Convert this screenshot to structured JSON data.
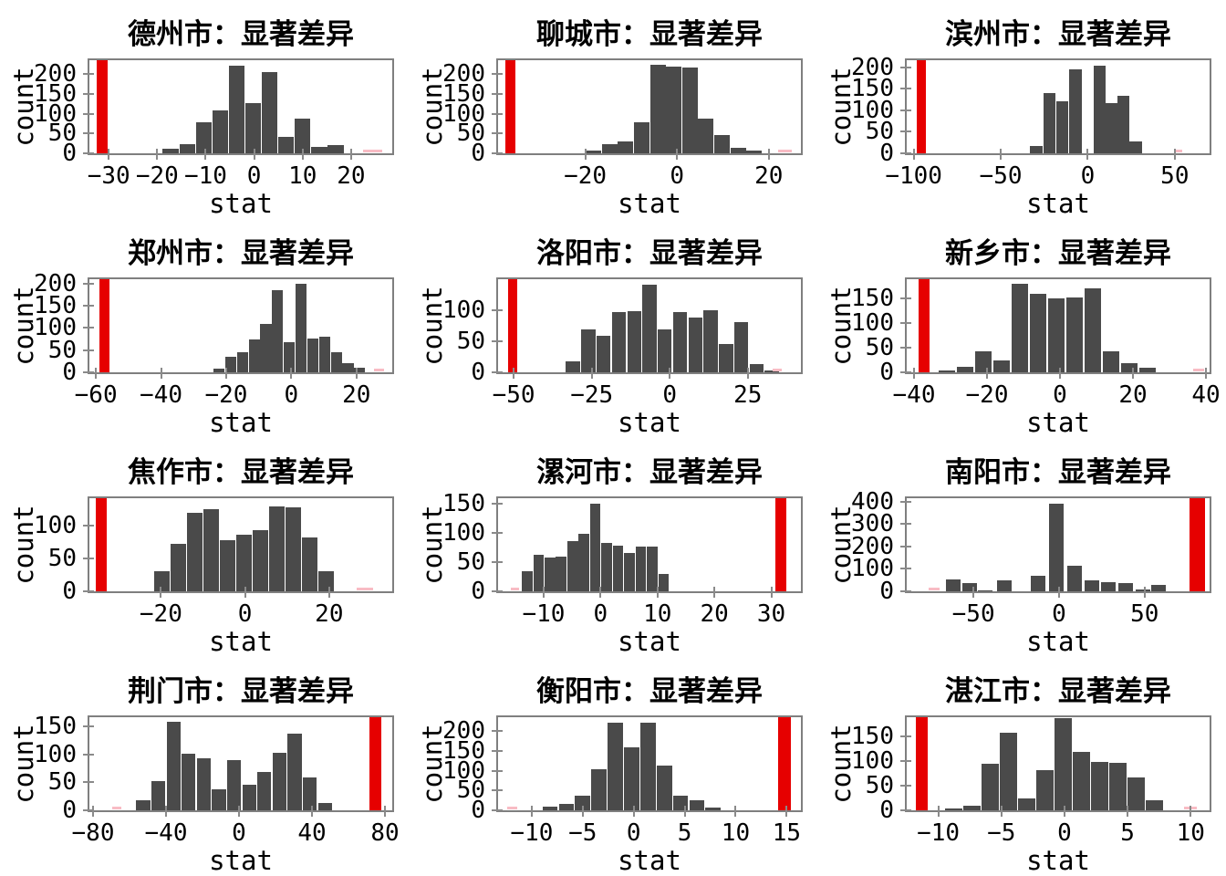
{
  "figure": {
    "rows": 4,
    "cols": 3,
    "xlabel": "stat",
    "ylabel": "count"
  },
  "colors": {
    "histogram_bar": "#4a4a4a",
    "highlight_bar": "#e60000",
    "pink_mark": "#f8bcc4",
    "spine": "#7f7f7f",
    "tick": "#8a8a8a",
    "text": "#000000",
    "background": "#ffffff"
  },
  "chart_data": [
    {
      "type": "bar",
      "title": "德州市：显著差异",
      "xlabel": "stat",
      "ylabel": "count",
      "xlim": [
        -34,
        28.5
      ],
      "ylim": [
        0,
        235
      ],
      "xticks": {
        "values": [
          -30,
          -20,
          -10,
          0,
          10,
          20
        ],
        "labels": [
          "−30",
          "−20",
          "−10",
          "0",
          "10",
          "20"
        ]
      },
      "yticks": {
        "values": [
          0,
          50,
          100,
          150,
          200
        ],
        "labels": [
          "0",
          "50",
          "100",
          "150",
          "200"
        ]
      },
      "bar_width": 3.3,
      "bars": [
        {
          "x": -17.2,
          "count": 12
        },
        {
          "x": -13.8,
          "count": 24
        },
        {
          "x": -10.4,
          "count": 78
        },
        {
          "x": -7.0,
          "count": 108
        },
        {
          "x": -3.6,
          "count": 222
        },
        {
          "x": -0.2,
          "count": 127
        },
        {
          "x": 3.2,
          "count": 205
        },
        {
          "x": 6.6,
          "count": 42
        },
        {
          "x": 10.0,
          "count": 88
        },
        {
          "x": 13.4,
          "count": 16
        },
        {
          "x": 16.8,
          "count": 21
        }
      ],
      "highlight_bar": {
        "x": -31.4,
        "width": 2.2,
        "full_height": true
      },
      "pink_mark": {
        "x": 24.5,
        "width": 4
      }
    },
    {
      "type": "bar",
      "title": "聊城市：显著差异",
      "xlabel": "stat",
      "ylabel": "count",
      "xlim": [
        -39,
        27
      ],
      "ylim": [
        0,
        235
      ],
      "xticks": {
        "values": [
          -20,
          0,
          20
        ],
        "labels": [
          "−20",
          "0",
          "20"
        ]
      },
      "yticks": {
        "values": [
          0,
          50,
          100,
          150,
          200
        ],
        "labels": [
          "0",
          "50",
          "100",
          "150",
          "200"
        ]
      },
      "bar_width": 3.4,
      "bars": [
        {
          "x": -18.2,
          "count": 6
        },
        {
          "x": -14.7,
          "count": 22
        },
        {
          "x": -11.2,
          "count": 30
        },
        {
          "x": -7.7,
          "count": 78
        },
        {
          "x": -4.2,
          "count": 224
        },
        {
          "x": -0.7,
          "count": 219
        },
        {
          "x": 2.8,
          "count": 217
        },
        {
          "x": 6.3,
          "count": 88
        },
        {
          "x": 9.8,
          "count": 45
        },
        {
          "x": 13.3,
          "count": 13
        },
        {
          "x": 16.8,
          "count": 6
        }
      ],
      "highlight_bar": {
        "x": -36.3,
        "width": 2.2,
        "full_height": true
      },
      "pink_mark": {
        "x": 23.5,
        "width": 3
      }
    },
    {
      "type": "bar",
      "title": "滨州市：显著差异",
      "xlabel": "stat",
      "ylabel": "count",
      "xlim": [
        -104,
        70
      ],
      "ylim": [
        0,
        217
      ],
      "xticks": {
        "values": [
          -100,
          -50,
          0,
          50
        ],
        "labels": [
          "−100",
          "−50",
          "0",
          "50"
        ]
      },
      "yticks": {
        "values": [
          0,
          50,
          100,
          150,
          200
        ],
        "labels": [
          "0",
          "50",
          "100",
          "150",
          "200"
        ]
      },
      "bar_width": 7.0,
      "bars": [
        {
          "x": -29.5,
          "count": 18
        },
        {
          "x": -22,
          "count": 140
        },
        {
          "x": -14.5,
          "count": 122
        },
        {
          "x": -7,
          "count": 196
        },
        {
          "x": 7,
          "count": 205
        },
        {
          "x": 13.5,
          "count": 118
        },
        {
          "x": 20.5,
          "count": 135
        },
        {
          "x": 27.5,
          "count": 27
        }
      ],
      "highlight_bar": {
        "x": -95.5,
        "width": 5,
        "full_height": true
      },
      "pink_mark": {
        "x": 52,
        "width": 5
      }
    },
    {
      "type": "bar",
      "title": "郑州市：显著差异",
      "xlabel": "stat",
      "ylabel": "count",
      "xlim": [
        -62,
        31
      ],
      "ylim": [
        0,
        210
      ],
      "xticks": {
        "values": [
          -60,
          -40,
          -20,
          0,
          20
        ],
        "labels": [
          "−60",
          "−40",
          "−20",
          "0",
          "20"
        ]
      },
      "yticks": {
        "values": [
          0,
          50,
          100,
          150,
          200
        ],
        "labels": [
          "0",
          "50",
          "100",
          "150",
          "200"
        ]
      },
      "bar_width": 3.4,
      "bars": [
        {
          "x": -22.2,
          "count": 8
        },
        {
          "x": -18.6,
          "count": 35
        },
        {
          "x": -15.0,
          "count": 45
        },
        {
          "x": -11.4,
          "count": 75
        },
        {
          "x": -7.8,
          "count": 110
        },
        {
          "x": -4.2,
          "count": 185
        },
        {
          "x": -0.6,
          "count": 67
        },
        {
          "x": 3.0,
          "count": 200
        },
        {
          "x": 6.6,
          "count": 77
        },
        {
          "x": 10.2,
          "count": 80
        },
        {
          "x": 13.8,
          "count": 45
        },
        {
          "x": 17.4,
          "count": 20
        },
        {
          "x": 21.0,
          "count": 10
        }
      ],
      "highlight_bar": {
        "x": -57.3,
        "width": 3.2,
        "full_height": true
      },
      "pink_mark": {
        "x": 27,
        "width": 3
      }
    },
    {
      "type": "bar",
      "title": "洛阳市：显著差异",
      "xlabel": "stat",
      "ylabel": "count",
      "xlim": [
        -55,
        42
      ],
      "ylim": [
        0,
        149
      ],
      "xticks": {
        "values": [
          -50,
          -25,
          0,
          25
        ],
        "labels": [
          "−50",
          "−25",
          "0",
          "25"
        ]
      },
      "yticks": {
        "values": [
          0,
          50,
          100
        ],
        "labels": [
          "0",
          "50",
          "100"
        ]
      },
      "bar_width": 4.5,
      "bars": [
        {
          "x": -31,
          "count": 17
        },
        {
          "x": -26.1,
          "count": 68
        },
        {
          "x": -21.2,
          "count": 58
        },
        {
          "x": -16.3,
          "count": 96
        },
        {
          "x": -11.4,
          "count": 98
        },
        {
          "x": -6.5,
          "count": 140
        },
        {
          "x": -1.6,
          "count": 69
        },
        {
          "x": 3.3,
          "count": 97
        },
        {
          "x": 8.2,
          "count": 88
        },
        {
          "x": 13.1,
          "count": 100
        },
        {
          "x": 18.0,
          "count": 45
        },
        {
          "x": 22.9,
          "count": 80
        },
        {
          "x": 27.8,
          "count": 13
        },
        {
          "x": 32.7,
          "count": 3
        }
      ],
      "highlight_bar": {
        "x": -50.3,
        "width": 2.9,
        "full_height": true
      },
      "pink_mark": {
        "x": 34.5,
        "width": 3
      }
    },
    {
      "type": "bar",
      "title": "新乡市：显著差异",
      "xlabel": "stat",
      "ylabel": "count",
      "xlim": [
        -42,
        41
      ],
      "ylim": [
        0,
        190
      ],
      "xticks": {
        "values": [
          -40,
          -20,
          0,
          20,
          40
        ],
        "labels": [
          "−40",
          "−20",
          "0",
          "20",
          "40"
        ]
      },
      "yticks": {
        "values": [
          0,
          50,
          100,
          150
        ],
        "labels": [
          "0",
          "50",
          "100",
          "150"
        ]
      },
      "bar_width": 4.6,
      "bars": [
        {
          "x": -31,
          "count": 3
        },
        {
          "x": -26,
          "count": 12
        },
        {
          "x": -21,
          "count": 42
        },
        {
          "x": -16,
          "count": 25
        },
        {
          "x": -11,
          "count": 180
        },
        {
          "x": -6,
          "count": 160
        },
        {
          "x": -1,
          "count": 150
        },
        {
          "x": 4,
          "count": 153
        },
        {
          "x": 9,
          "count": 172
        },
        {
          "x": 14,
          "count": 42
        },
        {
          "x": 19,
          "count": 18
        },
        {
          "x": 24,
          "count": 10
        }
      ],
      "highlight_bar": {
        "x": -37.2,
        "width": 3,
        "full_height": true
      },
      "pink_mark": {
        "x": 38,
        "width": 3
      }
    },
    {
      "type": "bar",
      "title": "焦作市：显著差异",
      "xlabel": "stat",
      "ylabel": "count",
      "xlim": [
        -37,
        35
      ],
      "ylim": [
        0,
        142
      ],
      "xticks": {
        "values": [
          -20,
          0,
          20
        ],
        "labels": [
          "−20",
          "0",
          "20"
        ]
      },
      "yticks": {
        "values": [
          0,
          50,
          100
        ],
        "labels": [
          "0",
          "50",
          "100"
        ]
      },
      "bar_width": 3.7,
      "bars": [
        {
          "x": -19.7,
          "count": 30
        },
        {
          "x": -15.8,
          "count": 72
        },
        {
          "x": -11.9,
          "count": 120
        },
        {
          "x": -8.0,
          "count": 125
        },
        {
          "x": -4.1,
          "count": 78
        },
        {
          "x": -0.2,
          "count": 86
        },
        {
          "x": 3.7,
          "count": 93
        },
        {
          "x": 7.6,
          "count": 130
        },
        {
          "x": 11.5,
          "count": 128
        },
        {
          "x": 15.4,
          "count": 82
        },
        {
          "x": 19.3,
          "count": 31
        }
      ],
      "highlight_bar": {
        "x": -34.2,
        "width": 2.5,
        "full_height": true
      },
      "pink_mark": {
        "x": 28.5,
        "width": 4
      }
    },
    {
      "type": "bar",
      "title": "漯河市：显著差异",
      "xlabel": "stat",
      "ylabel": "count",
      "xlim": [
        -18,
        35.2
      ],
      "ylim": [
        0,
        159
      ],
      "xticks": {
        "values": [
          -10,
          0,
          10,
          20,
          30
        ],
        "labels": [
          "−10",
          "0",
          "10",
          "20",
          "30"
        ]
      },
      "yticks": {
        "values": [
          0,
          50,
          100,
          150
        ],
        "labels": [
          "0",
          "50",
          "100",
          "150"
        ]
      },
      "bar_width": 1.85,
      "bars": [
        {
          "x": -12.9,
          "count": 35
        },
        {
          "x": -10.9,
          "count": 63
        },
        {
          "x": -8.9,
          "count": 58
        },
        {
          "x": -6.9,
          "count": 59
        },
        {
          "x": -4.9,
          "count": 85
        },
        {
          "x": -2.9,
          "count": 99
        },
        {
          "x": -0.9,
          "count": 150
        },
        {
          "x": 1.1,
          "count": 82
        },
        {
          "x": 3.1,
          "count": 78
        },
        {
          "x": 5.1,
          "count": 65
        },
        {
          "x": 7.1,
          "count": 77
        },
        {
          "x": 9.1,
          "count": 76
        },
        {
          "x": 11.1,
          "count": 30
        }
      ],
      "highlight_bar": {
        "x": 31.7,
        "width": 1.9,
        "full_height": true
      },
      "pink_mark": {
        "x": -15,
        "width": 1.5
      }
    },
    {
      "type": "bar",
      "title": "南阳市：显著差异",
      "xlabel": "stat",
      "ylabel": "count",
      "xlim": [
        -89,
        88
      ],
      "ylim": [
        0,
        416
      ],
      "xticks": {
        "values": [
          -50,
          0,
          50
        ],
        "labels": [
          "−50",
          "0",
          "50"
        ]
      },
      "yticks": {
        "values": [
          0,
          100,
          200,
          300,
          400
        ],
        "labels": [
          "0",
          "100",
          "200",
          "300",
          "400"
        ]
      },
      "bar_width": 8.5,
      "bars": [
        {
          "x": -62,
          "count": 55
        },
        {
          "x": -52,
          "count": 38
        },
        {
          "x": -43,
          "count": 3
        },
        {
          "x": -32,
          "count": 48
        },
        {
          "x": -12,
          "count": 70
        },
        {
          "x": -1.5,
          "count": 390
        },
        {
          "x": 9,
          "count": 115
        },
        {
          "x": 19,
          "count": 50
        },
        {
          "x": 29,
          "count": 42
        },
        {
          "x": 39,
          "count": 35
        },
        {
          "x": 49,
          "count": 8
        },
        {
          "x": 58,
          "count": 30
        }
      ],
      "highlight_bar": {
        "x": 81,
        "width": 9,
        "full_height": true
      },
      "pink_mark": {
        "x": -73,
        "width": 6
      }
    },
    {
      "type": "bar",
      "title": "荆门市：显著差异",
      "xlabel": "stat",
      "ylabel": "count",
      "xlim": [
        -82,
        84
      ],
      "ylim": [
        0,
        166
      ],
      "xticks": {
        "values": [
          -80,
          -40,
          0,
          40,
          80
        ],
        "labels": [
          "−80",
          "−40",
          "0",
          "40",
          "80"
        ]
      },
      "yticks": {
        "values": [
          0,
          50,
          100,
          150
        ],
        "labels": [
          "0",
          "50",
          "100",
          "150"
        ]
      },
      "bar_width": 7.6,
      "bars": [
        {
          "x": -52.5,
          "count": 18
        },
        {
          "x": -44.2,
          "count": 52
        },
        {
          "x": -35.9,
          "count": 158
        },
        {
          "x": -27.6,
          "count": 101
        },
        {
          "x": -19.3,
          "count": 93
        },
        {
          "x": -11.0,
          "count": 38
        },
        {
          "x": -2.7,
          "count": 89
        },
        {
          "x": 5.6,
          "count": 46
        },
        {
          "x": 13.9,
          "count": 69
        },
        {
          "x": 22.2,
          "count": 102
        },
        {
          "x": 30.5,
          "count": 137
        },
        {
          "x": 38.8,
          "count": 58
        },
        {
          "x": 47.1,
          "count": 13
        }
      ],
      "highlight_bar": {
        "x": 74.5,
        "width": 6.5,
        "full_height": true
      },
      "pink_mark": {
        "x": -67,
        "width": 5
      }
    },
    {
      "type": "bar",
      "title": "衡阳市：显著差异",
      "xlabel": "stat",
      "ylabel": "count",
      "xlim": [
        -13.3,
        16.4
      ],
      "ylim": [
        0,
        235
      ],
      "xticks": {
        "values": [
          -10,
          -5,
          0,
          5,
          10,
          15
        ],
        "labels": [
          "−10",
          "−5",
          "0",
          "5",
          "10",
          "15"
        ]
      },
      "yticks": {
        "values": [
          0,
          50,
          100,
          150,
          200
        ],
        "labels": [
          "0",
          "50",
          "100",
          "150",
          "200"
        ]
      },
      "bar_width": 1.5,
      "bars": [
        {
          "x": -8.2,
          "count": 10
        },
        {
          "x": -6.6,
          "count": 17
        },
        {
          "x": -5.0,
          "count": 38
        },
        {
          "x": -3.4,
          "count": 103
        },
        {
          "x": -1.8,
          "count": 222
        },
        {
          "x": -0.2,
          "count": 158
        },
        {
          "x": 1.4,
          "count": 222
        },
        {
          "x": 3.0,
          "count": 113
        },
        {
          "x": 4.6,
          "count": 37
        },
        {
          "x": 6.2,
          "count": 25
        },
        {
          "x": 7.8,
          "count": 8
        }
      ],
      "highlight_bar": {
        "x": 14.8,
        "width": 1.3,
        "full_height": true
      },
      "pink_mark": {
        "x": -11.9,
        "width": 1
      }
    },
    {
      "type": "bar",
      "title": "湛江市：显著差异",
      "xlabel": "stat",
      "ylabel": "count",
      "xlim": [
        -12.5,
        11.5
      ],
      "ylim": [
        0,
        189
      ],
      "xticks": {
        "values": [
          -10,
          -5,
          0,
          5,
          10
        ],
        "labels": [
          "−10",
          "−5",
          "0",
          "5",
          "10"
        ]
      },
      "yticks": {
        "values": [
          0,
          50,
          100,
          150
        ],
        "labels": [
          "0",
          "50",
          "100",
          "150"
        ]
      },
      "bar_width": 1.35,
      "bars": [
        {
          "x": -8.8,
          "count": 4
        },
        {
          "x": -7.35,
          "count": 10
        },
        {
          "x": -5.9,
          "count": 95
        },
        {
          "x": -4.45,
          "count": 157
        },
        {
          "x": -3.0,
          "count": 24
        },
        {
          "x": -1.55,
          "count": 81
        },
        {
          "x": -0.1,
          "count": 188
        },
        {
          "x": 1.35,
          "count": 118
        },
        {
          "x": 2.8,
          "count": 98
        },
        {
          "x": 4.25,
          "count": 97
        },
        {
          "x": 5.7,
          "count": 66
        },
        {
          "x": 7.15,
          "count": 20
        }
      ],
      "highlight_bar": {
        "x": -11.3,
        "width": 0.9,
        "full_height": true
      },
      "pink_mark": {
        "x": 10,
        "width": 1
      }
    }
  ]
}
